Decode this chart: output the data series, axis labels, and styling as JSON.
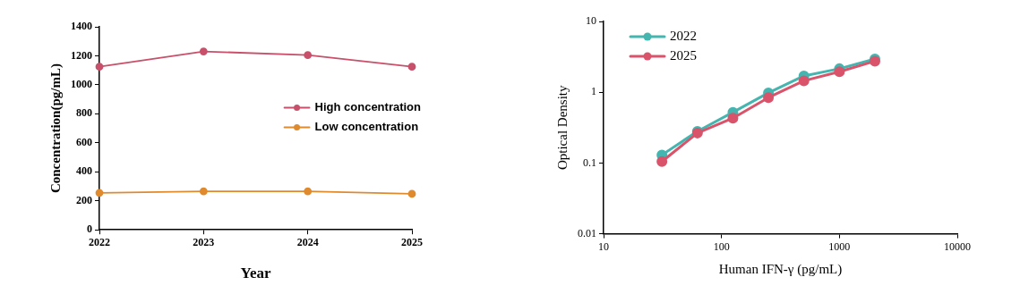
{
  "chart_data": [
    {
      "type": "line",
      "xlabel": "Year",
      "ylabel": "Concentration(pg/mL)",
      "categories": [
        "2022",
        "2023",
        "2024",
        "2025"
      ],
      "series": [
        {
          "name": "High concentration",
          "color": "#c8506a",
          "values": [
            1125,
            1230,
            1205,
            1125
          ]
        },
        {
          "name": "Low concentration",
          "color": "#e08a2e",
          "values": [
            255,
            265,
            265,
            248
          ]
        }
      ],
      "ylim": [
        0,
        1400
      ],
      "yticks": [
        0,
        200,
        400,
        600,
        800,
        1000,
        1200,
        1400
      ],
      "legend": "right",
      "marker": "circle"
    },
    {
      "type": "line",
      "xlabel": "Human IFN-γ (pg/mL)",
      "ylabel": "Optical Density",
      "x": [
        31.25,
        62.5,
        125,
        250,
        500,
        1000,
        2000
      ],
      "series": [
        {
          "name": "2022",
          "color": "#45b5b0",
          "values": [
            0.13,
            0.28,
            0.52,
            0.98,
            1.7,
            2.15,
            2.95
          ]
        },
        {
          "name": "2025",
          "color": "#d9536a",
          "values": [
            0.105,
            0.265,
            0.43,
            0.84,
            1.45,
            1.95,
            2.75
          ]
        }
      ],
      "xlim": [
        10,
        10000
      ],
      "xticks": [
        10,
        100,
        1000,
        10000
      ],
      "ylim": [
        0.01,
        10
      ],
      "yticks": [
        0.01,
        0.1,
        1,
        10
      ],
      "log": "xy",
      "legend": "top left",
      "marker": "circle"
    }
  ]
}
